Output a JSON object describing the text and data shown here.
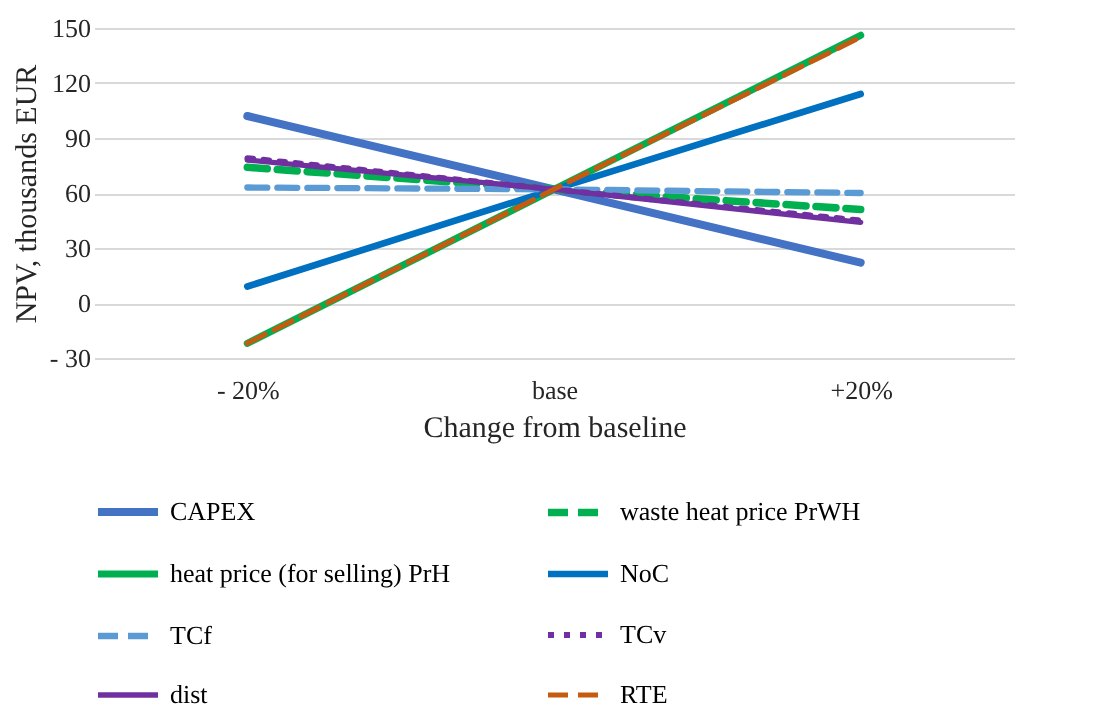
{
  "chart_data": {
    "type": "line",
    "xlabel": "Change from baseline",
    "ylabel": "NPV, thousands EUR",
    "categories": [
      "- 20%",
      "base",
      "+20%"
    ],
    "ylim": [
      -30,
      150
    ],
    "yticks": [
      {
        "value": -30,
        "label": "- 30"
      },
      0,
      30,
      60,
      90,
      120,
      150
    ],
    "grid": "y",
    "legend": "bottom",
    "series": [
      {
        "name": "CAPEX",
        "color": "#4472c4",
        "line_style": "solid",
        "values": [
          102,
          62,
          22
        ]
      },
      {
        "name": "waste heat price PrWH",
        "color": "#00b050",
        "line_style": "dashed",
        "values": [
          74,
          62,
          51
        ]
      },
      {
        "name": "heat price (for selling) PrH",
        "color": "#00b050",
        "line_style": "solid",
        "values": [
          -22,
          62,
          146
        ]
      },
      {
        "name": "NoC",
        "color": "#0070c0",
        "line_style": "solid",
        "values": [
          9,
          62,
          114
        ]
      },
      {
        "name": "TCf",
        "color": "#5b9bd5",
        "line_style": "dashed",
        "values": [
          63,
          62,
          60
        ]
      },
      {
        "name": "TCv",
        "color": "#7030a0",
        "line_style": "dotted",
        "values": [
          79,
          62,
          45
        ]
      },
      {
        "name": "dist",
        "color": "#7030a0",
        "line_style": "solid",
        "values": [
          78,
          62,
          44
        ]
      },
      {
        "name": "RTE",
        "color": "#c55a11",
        "line_style": "dashed",
        "values": [
          -22,
          62,
          145
        ]
      }
    ]
  }
}
